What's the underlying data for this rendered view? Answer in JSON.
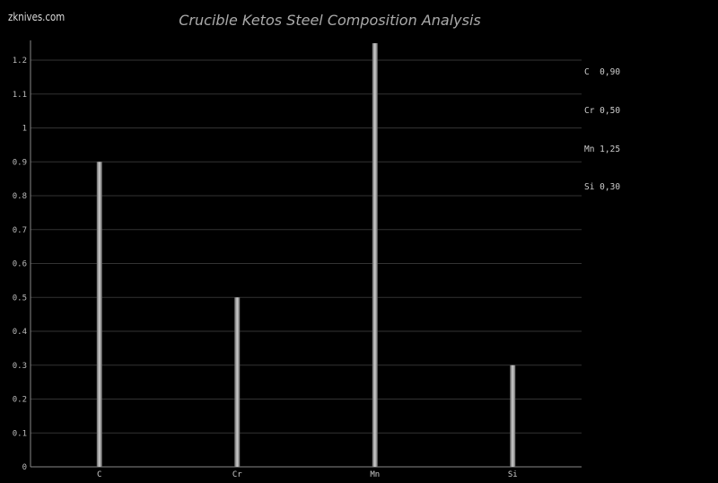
{
  "brand": "zknives.com",
  "chart_data": {
    "type": "bar",
    "title": "Crucible Ketos Steel Composition Analysis",
    "categories": [
      "C",
      "Cr",
      "Mn",
      "Si"
    ],
    "values": [
      0.9,
      0.5,
      1.25,
      0.3
    ],
    "ylim": [
      0,
      1.25
    ],
    "yticks": [
      "0",
      "0.1",
      "0.2",
      "0.3",
      "0.4",
      "0.5",
      "0.6",
      "0.7",
      "0.8",
      "0.9",
      "1",
      "1.1",
      "1.2"
    ],
    "grid": true,
    "legend_position": "top-right",
    "legend": [
      "C  0,90",
      "Cr 0,50",
      "Mn 1,25",
      "Si 0,30"
    ],
    "colors": {
      "background": "#000000",
      "bar": "#999999",
      "grid": "#333333",
      "text": "#cccccc"
    }
  }
}
